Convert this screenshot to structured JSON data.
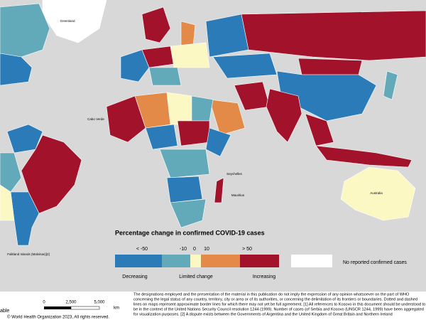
{
  "legend": {
    "title": "Percentage change in confirmed COVID-19 cases",
    "classes": [
      {
        "color": "#2a7bb8"
      },
      {
        "color": "#62a9b9"
      },
      {
        "color": "#fbf8c4"
      },
      {
        "color": "#e38a48"
      },
      {
        "color": "#a3122b"
      }
    ],
    "no_data": {
      "color": "#ffffff",
      "label": "No reported confirmed cases"
    },
    "break_labels": [
      "< -50",
      "-10",
      "0",
      "10",
      "> 50"
    ],
    "group_labels": [
      "Decreasing",
      "Limited change",
      "Increasing"
    ]
  },
  "scale_bar": {
    "labels": [
      "0",
      "2,500",
      "5,000"
    ],
    "unit": "km"
  },
  "cut_label": "able",
  "copyright": "© World Health Organization 2023, All rights reserved.",
  "disclaimer": [
    "The designations employed and the presentation of the material in this publication do not imply the expression of any opinion whatsoever on the part of WHO",
    "concerning the legal status of any country, territory, city or area or of its authorities, or concerning the delimitation of its frontiers or boundaries. Dotted and dashed",
    "lines on maps represent approximate border lines for which there may not yet be full agreement. [1] All references to Kosovo in this document should be understood to",
    "be in the context of the United Nations Security Council resolution 1244 (1999). Number of cases (of Serbia and Kosovo (UNSCR 1244, 1999) have been aggregated",
    "for visualization purposes. [2] A dispute exists between the Governments of Argentina and the United Kingdom of Great Britain and Northern Ireland"
  ],
  "place_labels": [
    "Greenland",
    "Australia",
    "Cabo Verde",
    "Seychelles",
    "Mauritius",
    "Falkland Islands (Malvinas)[2]"
  ]
}
